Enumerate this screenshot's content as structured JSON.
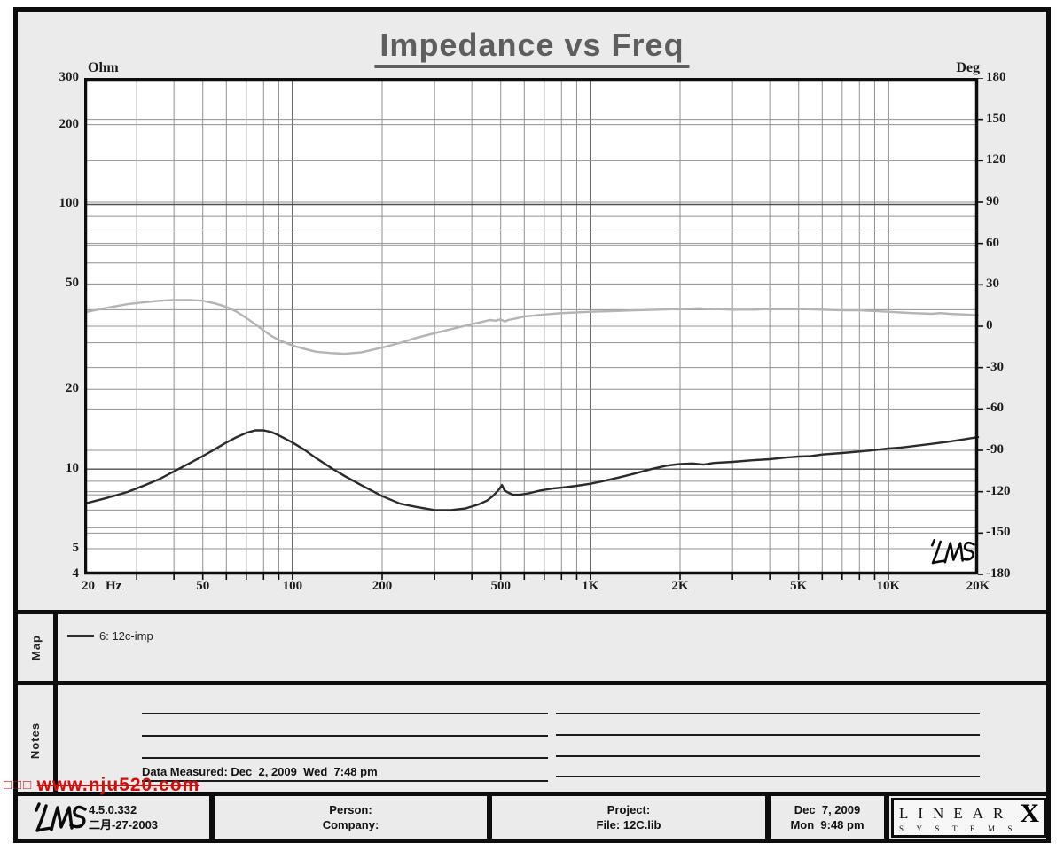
{
  "title": "Impedance vs Freq",
  "watermark": {
    "boxes": "□□□",
    "url": "www.nju520.com"
  },
  "map_section": {
    "label": "Map",
    "legend": [
      {
        "label": "6: 12c-imp",
        "color": "#2b2b2b"
      }
    ]
  },
  "notes_section": {
    "label": "Notes",
    "data_measured": "Data Measured: Dec  2, 2009  Wed  7:48 pm"
  },
  "footer": {
    "logo_text": "LMS",
    "version": "4.5.0.332",
    "version_date": "二月-27-2003",
    "person_label": "Person:",
    "company_label": "Company:",
    "project_label": "Project:",
    "file_label": "File: 12C.lib",
    "date": "Dec  7, 2009",
    "time": "Mon  9:48 pm",
    "brand_letters": "LINEAR",
    "brand_x": "X",
    "brand_sub": "SYSTEMS"
  },
  "chart_logo_text": "LMS",
  "chart_data": {
    "type": "line",
    "title": "Impedance vs Freq",
    "x_axis": {
      "scale": "log",
      "min": 20,
      "max": 20000,
      "unit": "Hz",
      "tick_values": [
        20,
        50,
        100,
        200,
        500,
        1000,
        2000,
        5000,
        10000,
        20000
      ],
      "tick_labels": [
        "20",
        "50",
        "100",
        "200",
        "500",
        "1K",
        "2K",
        "5K",
        "10K",
        "20K"
      ],
      "minor_gridlines": [
        30,
        40,
        50,
        60,
        70,
        80,
        90,
        200,
        300,
        400,
        500,
        600,
        700,
        800,
        900,
        2000,
        3000,
        4000,
        5000,
        6000,
        7000,
        8000,
        9000
      ],
      "major_gridlines": [
        100,
        1000,
        10000
      ]
    },
    "y_left_axis": {
      "scale": "log",
      "min": 4,
      "max": 300,
      "unit": "Ohm",
      "tick_values": [
        300,
        200,
        100,
        50,
        20,
        10,
        5,
        4
      ],
      "gridlines_minor": [
        5,
        6,
        7,
        8,
        9,
        20,
        30,
        40,
        50,
        60,
        70,
        80,
        90,
        200
      ],
      "gridlines_major": [
        10,
        100
      ]
    },
    "y_right_axis": {
      "scale": "linear",
      "min": -180,
      "max": 180,
      "unit": "Deg",
      "tick_values": [
        180,
        150,
        120,
        90,
        60,
        30,
        0,
        -30,
        -60,
        -90,
        -120,
        -150,
        -180
      ],
      "gridline_step": 30
    },
    "grid_color": "#919191",
    "grid_major_color": "#4f4f4f",
    "legend_position": "map-strip-below-chart",
    "series": [
      {
        "id": "impedance",
        "legend": "6: 12c-imp",
        "axis": "left",
        "color": "#2b2b2b",
        "width": 2.4,
        "points": [
          [
            20,
            7.4
          ],
          [
            24,
            7.8
          ],
          [
            28,
            8.2
          ],
          [
            32,
            8.7
          ],
          [
            36,
            9.2
          ],
          [
            40,
            9.8
          ],
          [
            45,
            10.5
          ],
          [
            50,
            11.2
          ],
          [
            55,
            11.9
          ],
          [
            60,
            12.6
          ],
          [
            65,
            13.2
          ],
          [
            70,
            13.7
          ],
          [
            75,
            14.0
          ],
          [
            80,
            14.0
          ],
          [
            85,
            13.8
          ],
          [
            90,
            13.4
          ],
          [
            100,
            12.6
          ],
          [
            110,
            11.8
          ],
          [
            120,
            11.0
          ],
          [
            135,
            10.1
          ],
          [
            150,
            9.4
          ],
          [
            170,
            8.7
          ],
          [
            200,
            7.9
          ],
          [
            230,
            7.4
          ],
          [
            260,
            7.2
          ],
          [
            300,
            7.0
          ],
          [
            340,
            7.0
          ],
          [
            380,
            7.1
          ],
          [
            420,
            7.35
          ],
          [
            450,
            7.6
          ],
          [
            470,
            7.9
          ],
          [
            490,
            8.3
          ],
          [
            505,
            8.7
          ],
          [
            515,
            8.3
          ],
          [
            530,
            8.15
          ],
          [
            550,
            8.0
          ],
          [
            580,
            8.0
          ],
          [
            620,
            8.1
          ],
          [
            680,
            8.3
          ],
          [
            750,
            8.45
          ],
          [
            830,
            8.55
          ],
          [
            900,
            8.65
          ],
          [
            1000,
            8.8
          ],
          [
            1100,
            9.0
          ],
          [
            1250,
            9.3
          ],
          [
            1400,
            9.6
          ],
          [
            1600,
            10.0
          ],
          [
            1800,
            10.3
          ],
          [
            2000,
            10.45
          ],
          [
            2200,
            10.5
          ],
          [
            2400,
            10.4
          ],
          [
            2600,
            10.55
          ],
          [
            3000,
            10.65
          ],
          [
            3500,
            10.8
          ],
          [
            4000,
            10.9
          ],
          [
            4500,
            11.05
          ],
          [
            5000,
            11.15
          ],
          [
            5500,
            11.2
          ],
          [
            6000,
            11.35
          ],
          [
            7000,
            11.5
          ],
          [
            8000,
            11.65
          ],
          [
            9000,
            11.8
          ],
          [
            10000,
            11.95
          ],
          [
            11000,
            12.05
          ],
          [
            12000,
            12.2
          ],
          [
            14000,
            12.45
          ],
          [
            16000,
            12.7
          ],
          [
            18000,
            12.95
          ],
          [
            20000,
            13.2
          ]
        ]
      },
      {
        "id": "phase",
        "legend": "",
        "axis": "right",
        "color": "#b4b4b4",
        "width": 2.4,
        "points": [
          [
            20,
            10
          ],
          [
            24,
            13.5
          ],
          [
            28,
            16
          ],
          [
            32,
            17.5
          ],
          [
            36,
            18.5
          ],
          [
            40,
            19
          ],
          [
            45,
            19
          ],
          [
            50,
            18.5
          ],
          [
            55,
            16.5
          ],
          [
            60,
            14
          ],
          [
            65,
            10.5
          ],
          [
            70,
            6
          ],
          [
            75,
            1.5
          ],
          [
            80,
            -3
          ],
          [
            85,
            -7
          ],
          [
            90,
            -10
          ],
          [
            100,
            -14
          ],
          [
            110,
            -16.5
          ],
          [
            120,
            -18.5
          ],
          [
            135,
            -19.5
          ],
          [
            150,
            -20
          ],
          [
            170,
            -19
          ],
          [
            200,
            -15.5
          ],
          [
            230,
            -12
          ],
          [
            260,
            -8.5
          ],
          [
            300,
            -5
          ],
          [
            350,
            -1.5
          ],
          [
            400,
            1.5
          ],
          [
            430,
            3
          ],
          [
            460,
            4.5
          ],
          [
            480,
            4
          ],
          [
            500,
            5
          ],
          [
            515,
            3.5
          ],
          [
            530,
            4.5
          ],
          [
            560,
            5.5
          ],
          [
            600,
            7
          ],
          [
            700,
            8.5
          ],
          [
            800,
            9.5
          ],
          [
            900,
            10
          ],
          [
            1000,
            10.5
          ],
          [
            1200,
            11
          ],
          [
            1400,
            11.5
          ],
          [
            1700,
            12
          ],
          [
            2000,
            12.5
          ],
          [
            2300,
            13
          ],
          [
            2600,
            12.5
          ],
          [
            3000,
            12
          ],
          [
            3500,
            12
          ],
          [
            4000,
            12.5
          ],
          [
            4500,
            12.5
          ],
          [
            5000,
            12.5
          ],
          [
            6000,
            12
          ],
          [
            7000,
            11.5
          ],
          [
            8000,
            11.5
          ],
          [
            9000,
            11
          ],
          [
            10000,
            10.5
          ],
          [
            12000,
            9.5
          ],
          [
            14000,
            9
          ],
          [
            15000,
            9.5
          ],
          [
            16000,
            9
          ],
          [
            18000,
            8.5
          ],
          [
            20000,
            8
          ]
        ]
      }
    ]
  }
}
